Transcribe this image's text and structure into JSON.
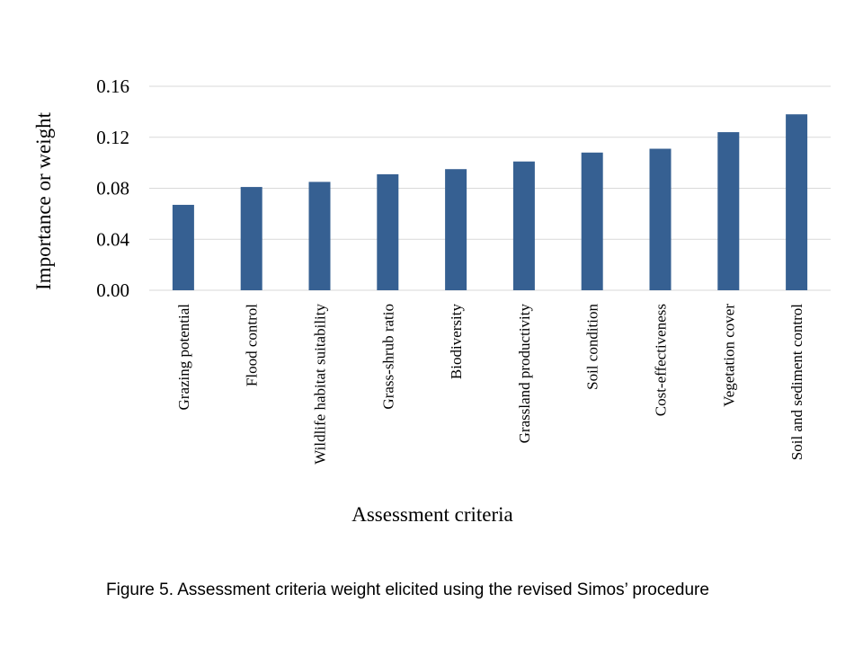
{
  "chart_data": {
    "type": "bar",
    "categories": [
      "Grazing potential",
      "Flood control",
      "Wildlife habitat suitability",
      "Grass-shrub ratio",
      "Biodiversity",
      "Grassland productivity",
      "Soil condition",
      "Cost-effectiveness",
      "Vegetation cover",
      "Soil and sediment control"
    ],
    "values": [
      0.067,
      0.081,
      0.085,
      0.091,
      0.095,
      0.101,
      0.108,
      0.111,
      0.124,
      0.138
    ],
    "xlabel": "Assessment criteria",
    "ylabel": "Importance or weight",
    "ylim": [
      0,
      0.16
    ],
    "yticks": [
      "0.00",
      "0.04",
      "0.08",
      "0.12",
      "0.16"
    ],
    "grid": "horizontal",
    "bar_color": "#366092",
    "grid_color": "#d9d9d9"
  },
  "caption": "Figure 5. Assessment criteria weight elicited using the revised Simos’ procedure"
}
